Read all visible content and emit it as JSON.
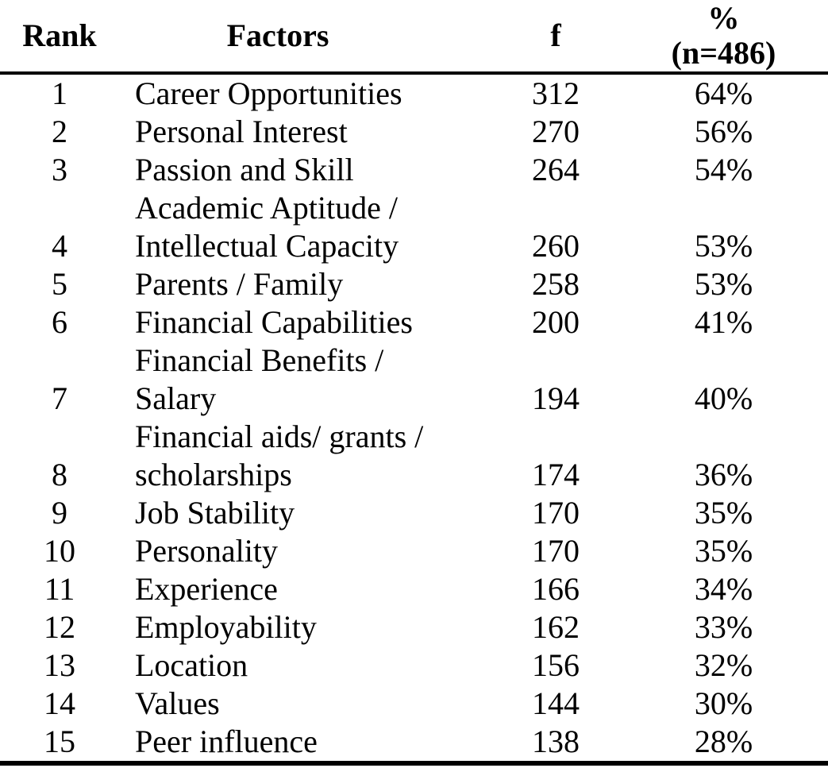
{
  "table": {
    "headers": {
      "rank": "Rank",
      "factors": "Factors",
      "f": "f",
      "pct": "%\n(n=486)"
    },
    "rows": [
      {
        "rank": "1",
        "factor": "Career Opportunities",
        "f": "312",
        "pct": "64%"
      },
      {
        "rank": "2",
        "factor": "Personal Interest",
        "f": "270",
        "pct": "56%"
      },
      {
        "rank": "3",
        "factor": "Passion and Skill",
        "f": "264",
        "pct": "54%"
      },
      {
        "rank": "4",
        "factor": "Academic Aptitude /\nIntellectual Capacity",
        "f": "260",
        "pct": "53%"
      },
      {
        "rank": "5",
        "factor": "Parents / Family",
        "f": "258",
        "pct": "53%"
      },
      {
        "rank": "6",
        "factor": "Financial Capabilities",
        "f": "200",
        "pct": "41%"
      },
      {
        "rank": "7",
        "factor": "Financial Benefits /\nSalary",
        "f": "194",
        "pct": "40%"
      },
      {
        "rank": "8",
        "factor": "Financial aids/ grants /\nscholarships",
        "f": "174",
        "pct": "36%"
      },
      {
        "rank": "9",
        "factor": "Job Stability",
        "f": "170",
        "pct": "35%"
      },
      {
        "rank": "10",
        "factor": "Personality",
        "f": "170",
        "pct": "35%"
      },
      {
        "rank": "11",
        "factor": "Experience",
        "f": "166",
        "pct": "34%"
      },
      {
        "rank": "12",
        "factor": "Employability",
        "f": "162",
        "pct": "33%"
      },
      {
        "rank": "13",
        "factor": "Location",
        "f": "156",
        "pct": "32%"
      },
      {
        "rank": "14",
        "factor": "Values",
        "f": "144",
        "pct": "30%"
      },
      {
        "rank": "15",
        "factor": "Peer influence",
        "f": "138",
        "pct": "28%"
      }
    ]
  }
}
